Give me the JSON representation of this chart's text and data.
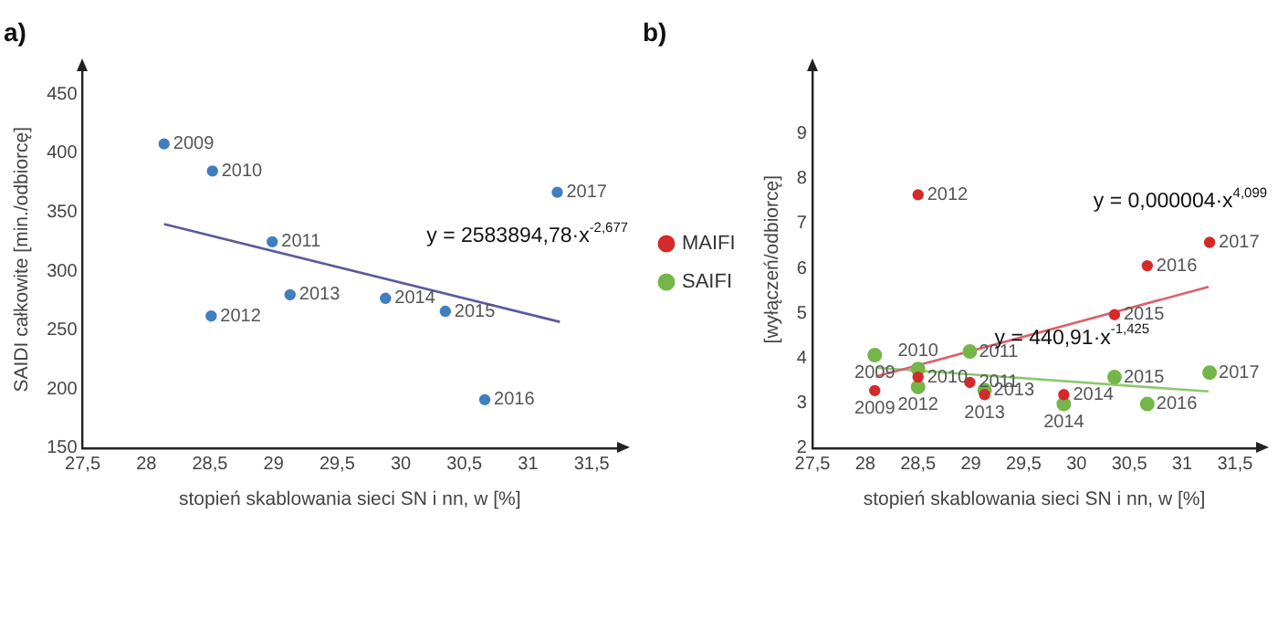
{
  "chart_data": [
    {
      "type": "scatter",
      "title": "a)",
      "xlabel": "stopień skablowania sieci SN i nn, w [%]",
      "ylabel": "SAIDI całkowite [min./odbiorcę]",
      "grid": false,
      "legend": false,
      "xlim": [
        27.5,
        31.7
      ],
      "xticks": [
        {
          "value": 27.5,
          "label": "27,5"
        },
        28,
        {
          "value": 28.5,
          "label": "28,5"
        },
        29,
        {
          "value": 29.5,
          "label": "29,5"
        },
        30,
        {
          "value": 30.5,
          "label": "30,5"
        },
        31,
        {
          "value": 31.5,
          "label": "31,5"
        }
      ],
      "ylim": [
        150,
        470
      ],
      "yticks": [
        150,
        200,
        250,
        300,
        350,
        400,
        450
      ],
      "series": [
        {
          "color": "#3f7fc0",
          "marker": "circle",
          "x": [
            28.14,
            28.52,
            28.99,
            28.51,
            29.13,
            29.88,
            30.35,
            30.66,
            31.23
          ],
          "values": [
            408,
            385,
            325,
            262,
            280,
            277,
            266,
            191,
            367
          ]
        },
        {
          "type": "line",
          "color": "#5c5a9c",
          "x": [
            28.14,
            31.25
          ],
          "values": [
            340,
            257
          ]
        }
      ],
      "annotations": [
        {
          "text": "2009",
          "x": 28.14,
          "y": 408
        },
        {
          "text": "2010",
          "x": 28.52,
          "y": 385
        },
        {
          "text": "2011",
          "x": 28.99,
          "y": 325
        },
        {
          "text": "2012",
          "x": 28.51,
          "y": 262
        },
        {
          "text": "2013",
          "x": 29.13,
          "y": 280
        },
        {
          "text": "2014",
          "x": 29.88,
          "y": 277
        },
        {
          "text": "2015",
          "x": 30.35,
          "y": 266
        },
        {
          "text": "2016",
          "x": 30.66,
          "y": 191
        },
        {
          "text": "2017",
          "x": 31.23,
          "y": 367
        },
        "y = 2583894,78·x$^{-2,677}$"
      ]
    },
    {
      "type": "scatter",
      "title": "b)",
      "xlabel": "stopień skablowania sieci SN i nn, w [%]",
      "ylabel": "[wyłączeń/odbiorcę]",
      "grid": false,
      "legend": "left",
      "xlim": [
        27.5,
        31.7
      ],
      "xticks": [
        {
          "value": 27.5,
          "label": "27,5"
        },
        28,
        {
          "value": 28.5,
          "label": "28,5"
        },
        29,
        {
          "value": 29.5,
          "label": "29,5"
        },
        30,
        {
          "value": 30.5,
          "label": "30,5"
        },
        31,
        {
          "value": 31.5,
          "label": "31,5"
        }
      ],
      "ylim": [
        2,
        10.4
      ],
      "yticks": [
        2,
        3,
        4,
        5,
        6,
        7,
        8,
        9
      ],
      "series": [
        {
          "name": "MAIFI",
          "color": "#d42a2a",
          "marker": "circle",
          "x": [
            28.09,
            28.5,
            28.99,
            28.5,
            29.13,
            29.88,
            30.36,
            30.67,
            31.26
          ],
          "values": [
            3.28,
            3.58,
            3.46,
            7.64,
            3.19,
            3.19,
            4.97,
            6.06,
            6.58
          ]
        },
        {
          "name": "SAIFI",
          "color": "#74b648",
          "marker": "circle",
          "x": [
            28.09,
            28.5,
            28.99,
            28.5,
            29.13,
            29.88,
            30.36,
            30.67,
            31.26
          ],
          "values": [
            4.07,
            3.76,
            4.15,
            3.36,
            3.29,
            2.98,
            3.58,
            2.98,
            3.68
          ]
        },
        {
          "type": "line",
          "color": "#d9606a",
          "x": [
            28.1,
            31.25
          ],
          "values": [
            3.59,
            5.59
          ]
        },
        {
          "type": "line",
          "color": "#8cc86e",
          "x": [
            28.1,
            31.25
          ],
          "values": [
            3.79,
            3.26
          ]
        }
      ],
      "annotations": [
        {
          "text": "2009",
          "x": 28.09,
          "y": 3.28
        },
        {
          "text": "2010",
          "x": 28.5,
          "y": 3.58
        },
        {
          "text": "2011",
          "x": 28.99,
          "y": 3.46
        },
        {
          "text": "2012",
          "x": 28.5,
          "y": 7.64
        },
        {
          "text": "2013",
          "x": 29.13,
          "y": 3.19
        },
        {
          "text": "2014",
          "x": 29.88,
          "y": 3.19
        },
        {
          "text": "2015",
          "x": 30.36,
          "y": 4.97
        },
        {
          "text": "2016",
          "x": 30.67,
          "y": 6.06
        },
        {
          "text": "2017",
          "x": 31.26,
          "y": 6.58
        },
        {
          "text": "2009",
          "x": 28.09,
          "y": 4.07
        },
        {
          "text": "2010",
          "x": 28.5,
          "y": 3.76
        },
        {
          "text": "2011",
          "x": 28.99,
          "y": 4.15
        },
        {
          "text": "2012",
          "x": 28.5,
          "y": 3.36
        },
        {
          "text": "2013",
          "x": 29.13,
          "y": 3.29
        },
        {
          "text": "2014",
          "x": 29.88,
          "y": 2.98
        },
        {
          "text": "2015",
          "x": 30.36,
          "y": 3.58
        },
        {
          "text": "2016",
          "x": 30.67,
          "y": 2.98
        },
        {
          "text": "2017",
          "x": 31.26,
          "y": 3.68
        },
        "y = 0,000004·x$^{4,099}$",
        "y = 440,91·x$^{-1,425}$"
      ]
    }
  ]
}
